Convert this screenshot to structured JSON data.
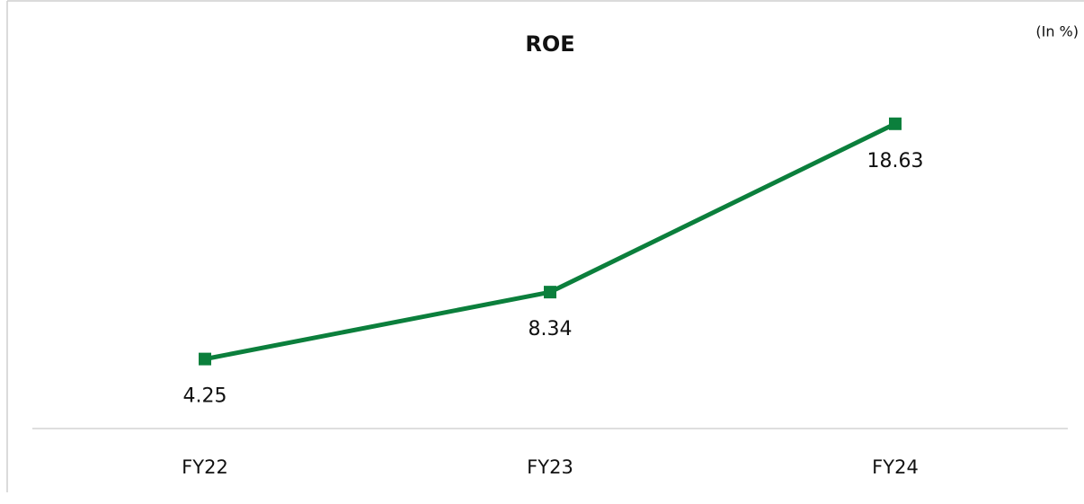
{
  "chart_data": {
    "type": "line",
    "title": "ROE",
    "annotation": "(In %)",
    "categories": [
      "FY22",
      "FY23",
      "FY24"
    ],
    "values": [
      4.25,
      8.34,
      18.63
    ],
    "color": "#0b7f3c",
    "ylim": [
      0,
      24
    ]
  }
}
